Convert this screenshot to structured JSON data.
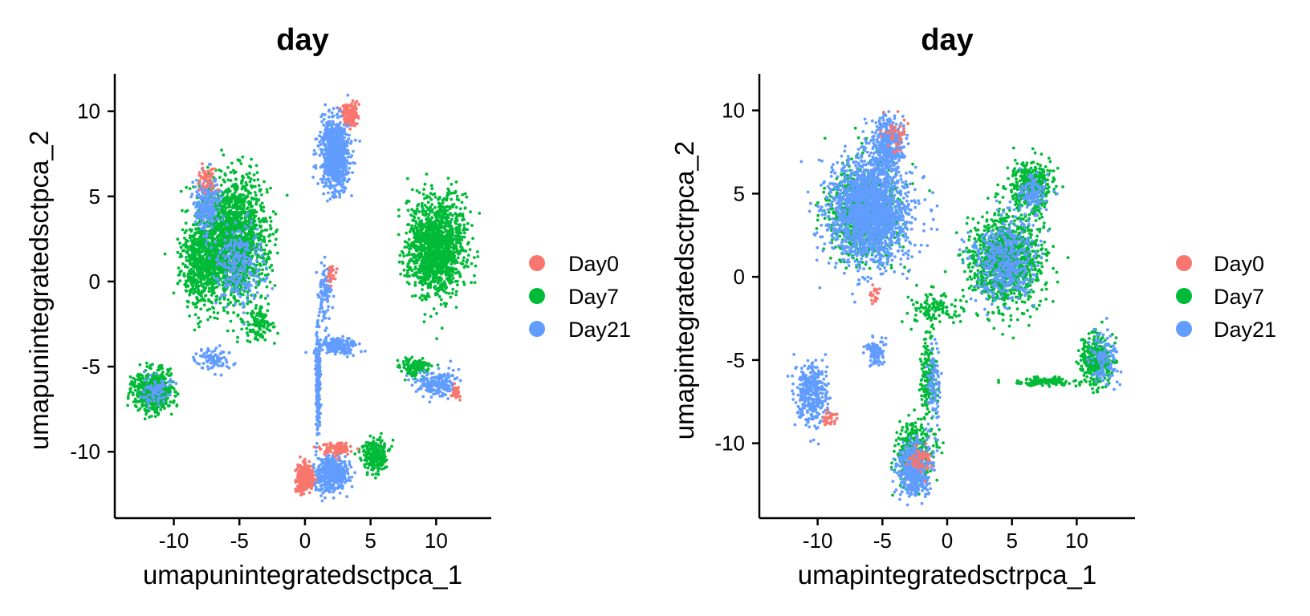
{
  "chart_data": [
    {
      "type": "scatter",
      "title": "day",
      "xlabel": "umapunintegratedsctpca_1",
      "ylabel": "umapunintegratedsctpca_2",
      "xlim": [
        -14.5,
        14.2
      ],
      "ylim": [
        -13.9,
        12.2
      ],
      "xticks": [
        -10,
        -5,
        0,
        5,
        10
      ],
      "yticks": [
        -10,
        -5,
        0,
        5,
        10
      ],
      "xtick_labels": [
        "-10",
        "-5",
        "0",
        "5",
        "10"
      ],
      "ytick_labels": [
        "-10",
        "-5",
        "0",
        "5",
        "10"
      ],
      "legend": {
        "placement": "right",
        "entries": [
          "Day0",
          "Day7",
          "Day21"
        ]
      },
      "grid": false,
      "series": [
        {
          "name": "Day7",
          "color": "#00BA38",
          "clusters": [
            {
              "cx": -5.5,
              "cy": 2.5,
              "sx": 2.2,
              "sy": 3.0,
              "n": 1800
            },
            {
              "cx": -8.0,
              "cy": 1.0,
              "sx": 1.2,
              "sy": 2.0,
              "n": 500
            },
            {
              "cx": 10.0,
              "cy": 2.0,
              "sx": 1.8,
              "sy": 2.3,
              "n": 1400
            },
            {
              "cx": -11.5,
              "cy": -6.5,
              "sx": 1.2,
              "sy": 1.0,
              "n": 600
            },
            {
              "cx": 5.3,
              "cy": -10.3,
              "sx": 0.8,
              "sy": 0.8,
              "n": 250
            },
            {
              "cx": 8.5,
              "cy": -5.0,
              "sx": 1.0,
              "sy": 0.4,
              "n": 150
            },
            {
              "cx": -3.5,
              "cy": -2.5,
              "sx": 0.8,
              "sy": 0.8,
              "n": 120
            }
          ]
        },
        {
          "name": "Day21",
          "color": "#619CFF",
          "clusters": [
            {
              "cx": 2.3,
              "cy": 7.5,
              "sx": 0.9,
              "sy": 1.8,
              "n": 900
            },
            {
              "cx": -7.5,
              "cy": 4.5,
              "sx": 0.8,
              "sy": 1.2,
              "n": 250
            },
            {
              "cx": -5.0,
              "cy": 1.0,
              "sx": 1.5,
              "sy": 2.0,
              "n": 250
            },
            {
              "cx": 2.0,
              "cy": -11.3,
              "sx": 1.0,
              "sy": 0.8,
              "n": 450
            },
            {
              "cx": 1.0,
              "cy": -6.0,
              "sx": 0.15,
              "sy": 2.5,
              "n": 220
            },
            {
              "cx": 2.5,
              "cy": -3.8,
              "sx": 1.3,
              "sy": 0.4,
              "n": 180
            },
            {
              "cx": 1.5,
              "cy": -0.5,
              "sx": 0.4,
              "sy": 1.5,
              "n": 100
            },
            {
              "cx": 10.0,
              "cy": -6.0,
              "sx": 1.3,
              "sy": 0.6,
              "n": 200
            },
            {
              "cx": -11.5,
              "cy": -6.5,
              "sx": 1.0,
              "sy": 0.8,
              "n": 80
            },
            {
              "cx": -7.0,
              "cy": -4.5,
              "sx": 1.2,
              "sy": 0.6,
              "n": 80
            }
          ]
        },
        {
          "name": "Day0",
          "color": "#F8766D",
          "clusters": [
            {
              "cx": 0.0,
              "cy": -11.5,
              "sx": 0.5,
              "sy": 0.7,
              "n": 350
            },
            {
              "cx": 3.5,
              "cy": 9.8,
              "sx": 0.6,
              "sy": 0.6,
              "n": 120
            },
            {
              "cx": -7.5,
              "cy": 6.0,
              "sx": 0.5,
              "sy": 0.6,
              "n": 60
            },
            {
              "cx": 2.5,
              "cy": -9.8,
              "sx": 1.0,
              "sy": 0.4,
              "n": 80
            },
            {
              "cx": 11.5,
              "cy": -6.5,
              "sx": 0.3,
              "sy": 0.3,
              "n": 40
            },
            {
              "cx": 2.0,
              "cy": 0.5,
              "sx": 0.3,
              "sy": 0.6,
              "n": 25
            }
          ]
        }
      ]
    },
    {
      "type": "scatter",
      "title": "day",
      "xlabel": "umapintegratedsctrpca_1",
      "ylabel": "umapintegratedsctrpca_2",
      "xlim": [
        -14.5,
        14.5
      ],
      "ylim": [
        -14.5,
        12.2
      ],
      "xticks": [
        -10,
        -5,
        0,
        5,
        10
      ],
      "yticks": [
        -10,
        -5,
        0,
        5,
        10
      ],
      "xtick_labels": [
        "-10",
        "-5",
        "0",
        "5",
        "10"
      ],
      "ytick_labels": [
        "-10",
        "-5",
        "0",
        "5",
        "10"
      ],
      "legend": {
        "placement": "right",
        "entries": [
          "Day0",
          "Day7",
          "Day21"
        ]
      },
      "grid": false,
      "series": [
        {
          "name": "Day7",
          "color": "#00BA38",
          "clusters": [
            {
              "cx": -6.5,
              "cy": 4.0,
              "sx": 2.2,
              "sy": 2.3,
              "n": 900
            },
            {
              "cx": 4.5,
              "cy": 1.0,
              "sx": 2.2,
              "sy": 2.3,
              "n": 1200
            },
            {
              "cx": 6.5,
              "cy": 5.5,
              "sx": 1.2,
              "sy": 1.2,
              "n": 400
            },
            {
              "cx": 11.5,
              "cy": -5.0,
              "sx": 1.0,
              "sy": 1.2,
              "n": 400
            },
            {
              "cx": 7.5,
              "cy": -6.3,
              "sx": 2.0,
              "sy": 0.2,
              "n": 120
            },
            {
              "cx": -2.5,
              "cy": -10.5,
              "sx": 1.2,
              "sy": 1.5,
              "n": 350
            },
            {
              "cx": -1.5,
              "cy": -6.0,
              "sx": 0.5,
              "sy": 2.0,
              "n": 150
            },
            {
              "cx": -1.0,
              "cy": -2.0,
              "sx": 1.5,
              "sy": 0.8,
              "n": 120
            }
          ]
        },
        {
          "name": "Day21",
          "color": "#619CFF",
          "clusters": [
            {
              "cx": -6.0,
              "cy": 4.0,
              "sx": 2.5,
              "sy": 2.6,
              "n": 1900
            },
            {
              "cx": -4.5,
              "cy": 8.0,
              "sx": 1.0,
              "sy": 1.4,
              "n": 400
            },
            {
              "cx": 4.5,
              "cy": 1.0,
              "sx": 2.0,
              "sy": 2.0,
              "n": 450
            },
            {
              "cx": 6.5,
              "cy": 5.0,
              "sx": 1.0,
              "sy": 1.0,
              "n": 120
            },
            {
              "cx": -10.5,
              "cy": -7.0,
              "sx": 1.0,
              "sy": 1.5,
              "n": 350
            },
            {
              "cx": -2.5,
              "cy": -11.5,
              "sx": 1.0,
              "sy": 1.3,
              "n": 500
            },
            {
              "cx": -5.5,
              "cy": -4.5,
              "sx": 0.6,
              "sy": 0.7,
              "n": 100
            },
            {
              "cx": 12.0,
              "cy": -5.0,
              "sx": 1.0,
              "sy": 1.2,
              "n": 120
            },
            {
              "cx": -1.0,
              "cy": -6.5,
              "sx": 0.4,
              "sy": 2.0,
              "n": 100
            }
          ]
        },
        {
          "name": "Day0",
          "color": "#F8766D",
          "clusters": [
            {
              "cx": -2.0,
              "cy": -11.0,
              "sx": 0.7,
              "sy": 0.6,
              "n": 60
            },
            {
              "cx": -9.0,
              "cy": -8.5,
              "sx": 0.5,
              "sy": 0.5,
              "n": 30
            },
            {
              "cx": -5.5,
              "cy": -1.0,
              "sx": 0.4,
              "sy": 0.5,
              "n": 20
            },
            {
              "cx": -4.0,
              "cy": 8.5,
              "sx": 0.8,
              "sy": 1.0,
              "n": 40
            }
          ]
        }
      ]
    }
  ]
}
